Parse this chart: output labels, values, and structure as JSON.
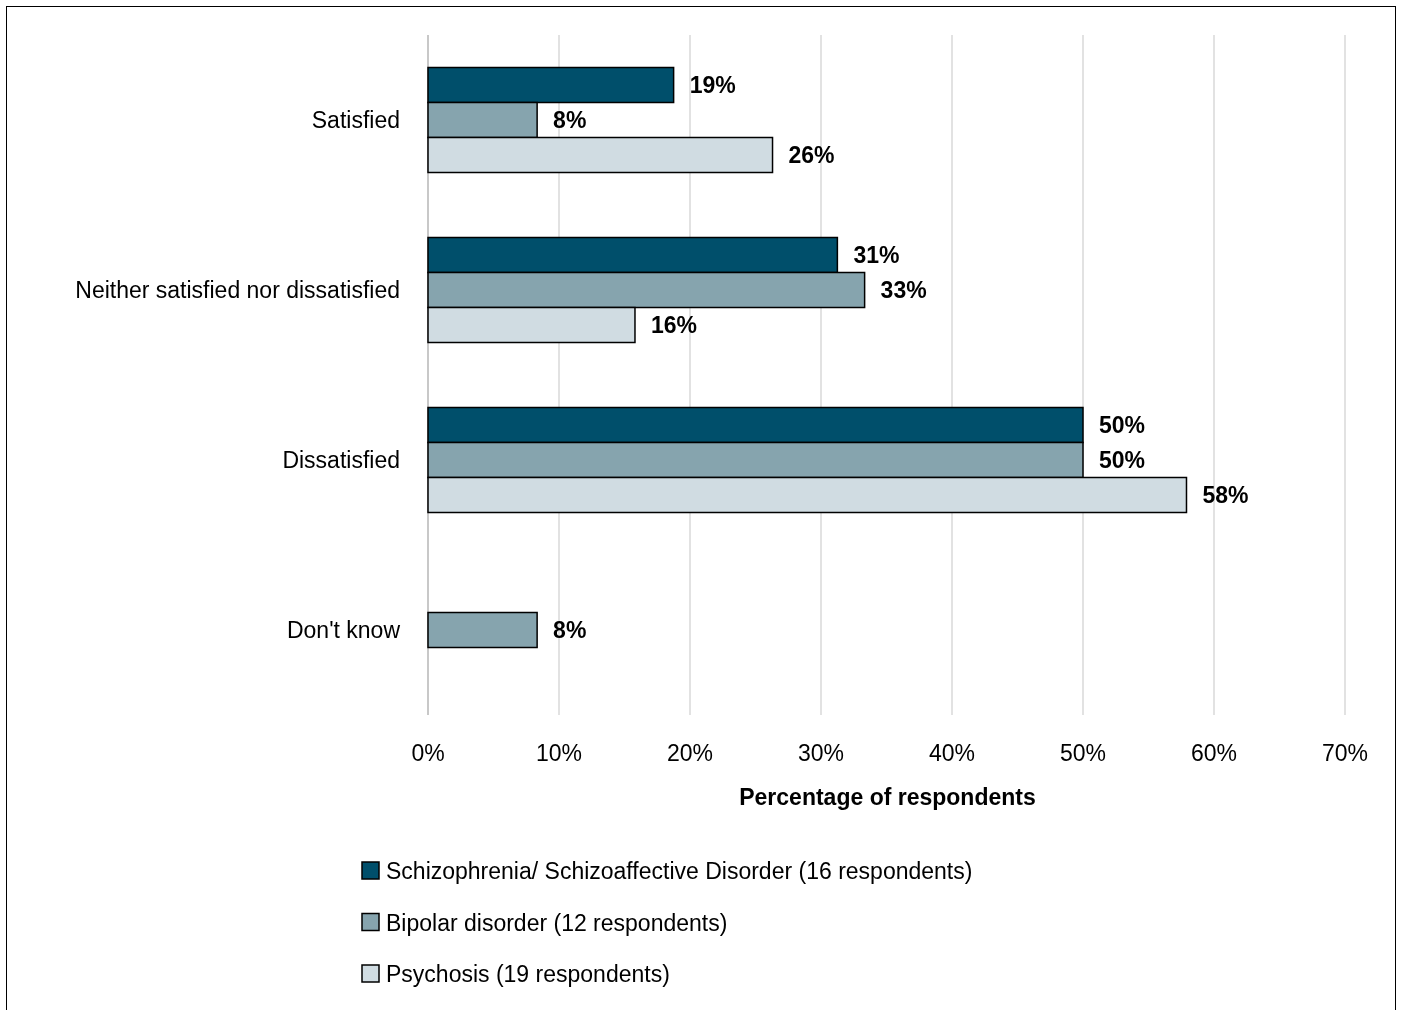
{
  "chart_data": {
    "type": "bar",
    "orientation": "horizontal",
    "xlabel": "Percentage of respondents",
    "categories": [
      "Satisfied",
      "Neither satisfied nor dissatisfied",
      "Dissatisfied",
      "Don't know"
    ],
    "series": [
      {
        "name": "Schizophrenia/ Schizoaffective Disorder (16 respondents)",
        "color": "#004f6b",
        "values": [
          18.75,
          31.25,
          50,
          null
        ],
        "value_labels": [
          "19%",
          "31%",
          "50%",
          null
        ]
      },
      {
        "name": "Bipolar disorder (12 respondents)",
        "color": "#86a4ae",
        "values": [
          8.33,
          33.33,
          50,
          8.33
        ],
        "value_labels": [
          "8%",
          "33%",
          "50%",
          "8%"
        ]
      },
      {
        "name": "Psychosis (19 respondents)",
        "color": "#d0dce2",
        "values": [
          26.3,
          15.8,
          57.9,
          null
        ],
        "value_labels": [
          "26%",
          "16%",
          "58%",
          null
        ]
      }
    ],
    "xlim": [
      0,
      70
    ],
    "xticks": [
      {
        "value": 0,
        "label": "0%"
      },
      {
        "value": 10,
        "label": "10%"
      },
      {
        "value": 20,
        "label": "20%"
      },
      {
        "value": 30,
        "label": "30%"
      },
      {
        "value": 40,
        "label": "40%"
      },
      {
        "value": 50,
        "label": "50%"
      },
      {
        "value": 60,
        "label": "60%"
      },
      {
        "value": 70,
        "label": "70%"
      }
    ],
    "grid": "x",
    "legend": "bottom"
  }
}
